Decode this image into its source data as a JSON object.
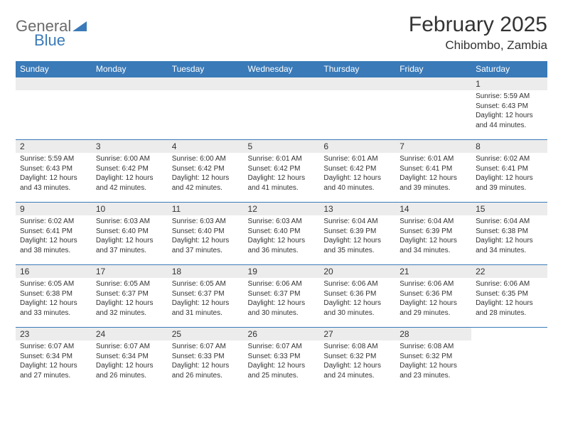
{
  "logo": {
    "word1": "General",
    "word2": "Blue"
  },
  "title": "February 2025",
  "location": "Chibombo, Zambia",
  "colors": {
    "header_bg": "#3a7ab8",
    "header_text": "#ffffff",
    "daynum_bg": "#ececec",
    "border": "#3a7ab8",
    "text": "#333333",
    "logo_gray": "#6b6b6b",
    "logo_blue": "#3a7ab8",
    "page_bg": "#ffffff"
  },
  "weekdays": [
    "Sunday",
    "Monday",
    "Tuesday",
    "Wednesday",
    "Thursday",
    "Friday",
    "Saturday"
  ],
  "weeks": [
    [
      null,
      null,
      null,
      null,
      null,
      null,
      {
        "n": "1",
        "sr": "5:59 AM",
        "ss": "6:43 PM",
        "dl": "12 hours and 44 minutes."
      }
    ],
    [
      {
        "n": "2",
        "sr": "5:59 AM",
        "ss": "6:43 PM",
        "dl": "12 hours and 43 minutes."
      },
      {
        "n": "3",
        "sr": "6:00 AM",
        "ss": "6:42 PM",
        "dl": "12 hours and 42 minutes."
      },
      {
        "n": "4",
        "sr": "6:00 AM",
        "ss": "6:42 PM",
        "dl": "12 hours and 42 minutes."
      },
      {
        "n": "5",
        "sr": "6:01 AM",
        "ss": "6:42 PM",
        "dl": "12 hours and 41 minutes."
      },
      {
        "n": "6",
        "sr": "6:01 AM",
        "ss": "6:42 PM",
        "dl": "12 hours and 40 minutes."
      },
      {
        "n": "7",
        "sr": "6:01 AM",
        "ss": "6:41 PM",
        "dl": "12 hours and 39 minutes."
      },
      {
        "n": "8",
        "sr": "6:02 AM",
        "ss": "6:41 PM",
        "dl": "12 hours and 39 minutes."
      }
    ],
    [
      {
        "n": "9",
        "sr": "6:02 AM",
        "ss": "6:41 PM",
        "dl": "12 hours and 38 minutes."
      },
      {
        "n": "10",
        "sr": "6:03 AM",
        "ss": "6:40 PM",
        "dl": "12 hours and 37 minutes."
      },
      {
        "n": "11",
        "sr": "6:03 AM",
        "ss": "6:40 PM",
        "dl": "12 hours and 37 minutes."
      },
      {
        "n": "12",
        "sr": "6:03 AM",
        "ss": "6:40 PM",
        "dl": "12 hours and 36 minutes."
      },
      {
        "n": "13",
        "sr": "6:04 AM",
        "ss": "6:39 PM",
        "dl": "12 hours and 35 minutes."
      },
      {
        "n": "14",
        "sr": "6:04 AM",
        "ss": "6:39 PM",
        "dl": "12 hours and 34 minutes."
      },
      {
        "n": "15",
        "sr": "6:04 AM",
        "ss": "6:38 PM",
        "dl": "12 hours and 34 minutes."
      }
    ],
    [
      {
        "n": "16",
        "sr": "6:05 AM",
        "ss": "6:38 PM",
        "dl": "12 hours and 33 minutes."
      },
      {
        "n": "17",
        "sr": "6:05 AM",
        "ss": "6:37 PM",
        "dl": "12 hours and 32 minutes."
      },
      {
        "n": "18",
        "sr": "6:05 AM",
        "ss": "6:37 PM",
        "dl": "12 hours and 31 minutes."
      },
      {
        "n": "19",
        "sr": "6:06 AM",
        "ss": "6:37 PM",
        "dl": "12 hours and 30 minutes."
      },
      {
        "n": "20",
        "sr": "6:06 AM",
        "ss": "6:36 PM",
        "dl": "12 hours and 30 minutes."
      },
      {
        "n": "21",
        "sr": "6:06 AM",
        "ss": "6:36 PM",
        "dl": "12 hours and 29 minutes."
      },
      {
        "n": "22",
        "sr": "6:06 AM",
        "ss": "6:35 PM",
        "dl": "12 hours and 28 minutes."
      }
    ],
    [
      {
        "n": "23",
        "sr": "6:07 AM",
        "ss": "6:34 PM",
        "dl": "12 hours and 27 minutes."
      },
      {
        "n": "24",
        "sr": "6:07 AM",
        "ss": "6:34 PM",
        "dl": "12 hours and 26 minutes."
      },
      {
        "n": "25",
        "sr": "6:07 AM",
        "ss": "6:33 PM",
        "dl": "12 hours and 26 minutes."
      },
      {
        "n": "26",
        "sr": "6:07 AM",
        "ss": "6:33 PM",
        "dl": "12 hours and 25 minutes."
      },
      {
        "n": "27",
        "sr": "6:08 AM",
        "ss": "6:32 PM",
        "dl": "12 hours and 24 minutes."
      },
      {
        "n": "28",
        "sr": "6:08 AM",
        "ss": "6:32 PM",
        "dl": "12 hours and 23 minutes."
      },
      null
    ]
  ],
  "labels": {
    "sunrise": "Sunrise:",
    "sunset": "Sunset:",
    "daylight": "Daylight:"
  }
}
